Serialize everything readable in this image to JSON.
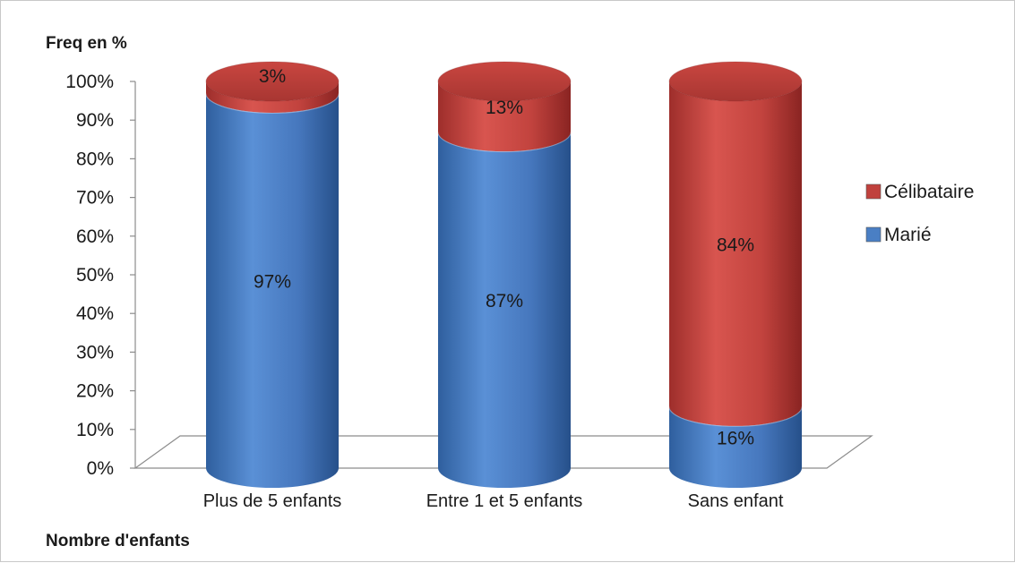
{
  "chart_data": {
    "type": "bar",
    "stacked": true,
    "percent": true,
    "shape": "cylinder",
    "categories": [
      "Plus de 5 enfants",
      "Entre 1 et 5 enfants",
      "Sans enfant"
    ],
    "series": [
      {
        "name": "Marié",
        "values": [
          97,
          87,
          16
        ],
        "labels": [
          "97%",
          "87%",
          "16%"
        ],
        "color": "#4a7fc4"
      },
      {
        "name": "Célibataire",
        "values": [
          3,
          13,
          84
        ],
        "labels": [
          "3%",
          "13%",
          "84%"
        ],
        "color": "#c0413d"
      }
    ],
    "ylabel": "Freq en %",
    "xlabel": "Nombre d'enfants",
    "ylim": [
      0,
      100
    ],
    "yticks": [
      "0%",
      "10%",
      "20%",
      "30%",
      "40%",
      "50%",
      "60%",
      "70%",
      "80%",
      "90%",
      "100%"
    ],
    "grid": false,
    "legend_position": "right"
  }
}
